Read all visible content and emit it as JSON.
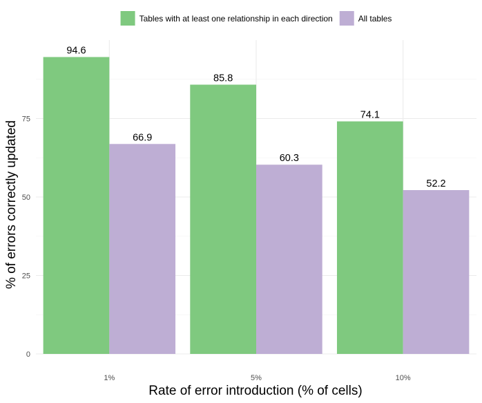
{
  "chart_data": {
    "type": "bar",
    "title": "",
    "xlabel": "Rate of error introduction (% of cells)",
    "ylabel": "% of errors correctly updated",
    "categories": [
      "1%",
      "5%",
      "10%"
    ],
    "series": [
      {
        "name": "Tables with at least one relationship in each direction",
        "values": [
          94.6,
          85.8,
          74.1
        ],
        "labels": [
          "94.6",
          "85.8",
          "74.1"
        ],
        "color": "#7fc97f"
      },
      {
        "name": "All tables",
        "values": [
          66.9,
          60.3,
          52.2
        ],
        "labels": [
          "66.9",
          "60.3",
          "52.2"
        ],
        "color": "#beaed4"
      }
    ],
    "ylim": [
      0,
      100
    ],
    "yticks": [
      0,
      25,
      50,
      75
    ],
    "ytick_labels": [
      "0",
      "25",
      "50",
      "75"
    ],
    "grid": true,
    "legend_position": "top"
  }
}
